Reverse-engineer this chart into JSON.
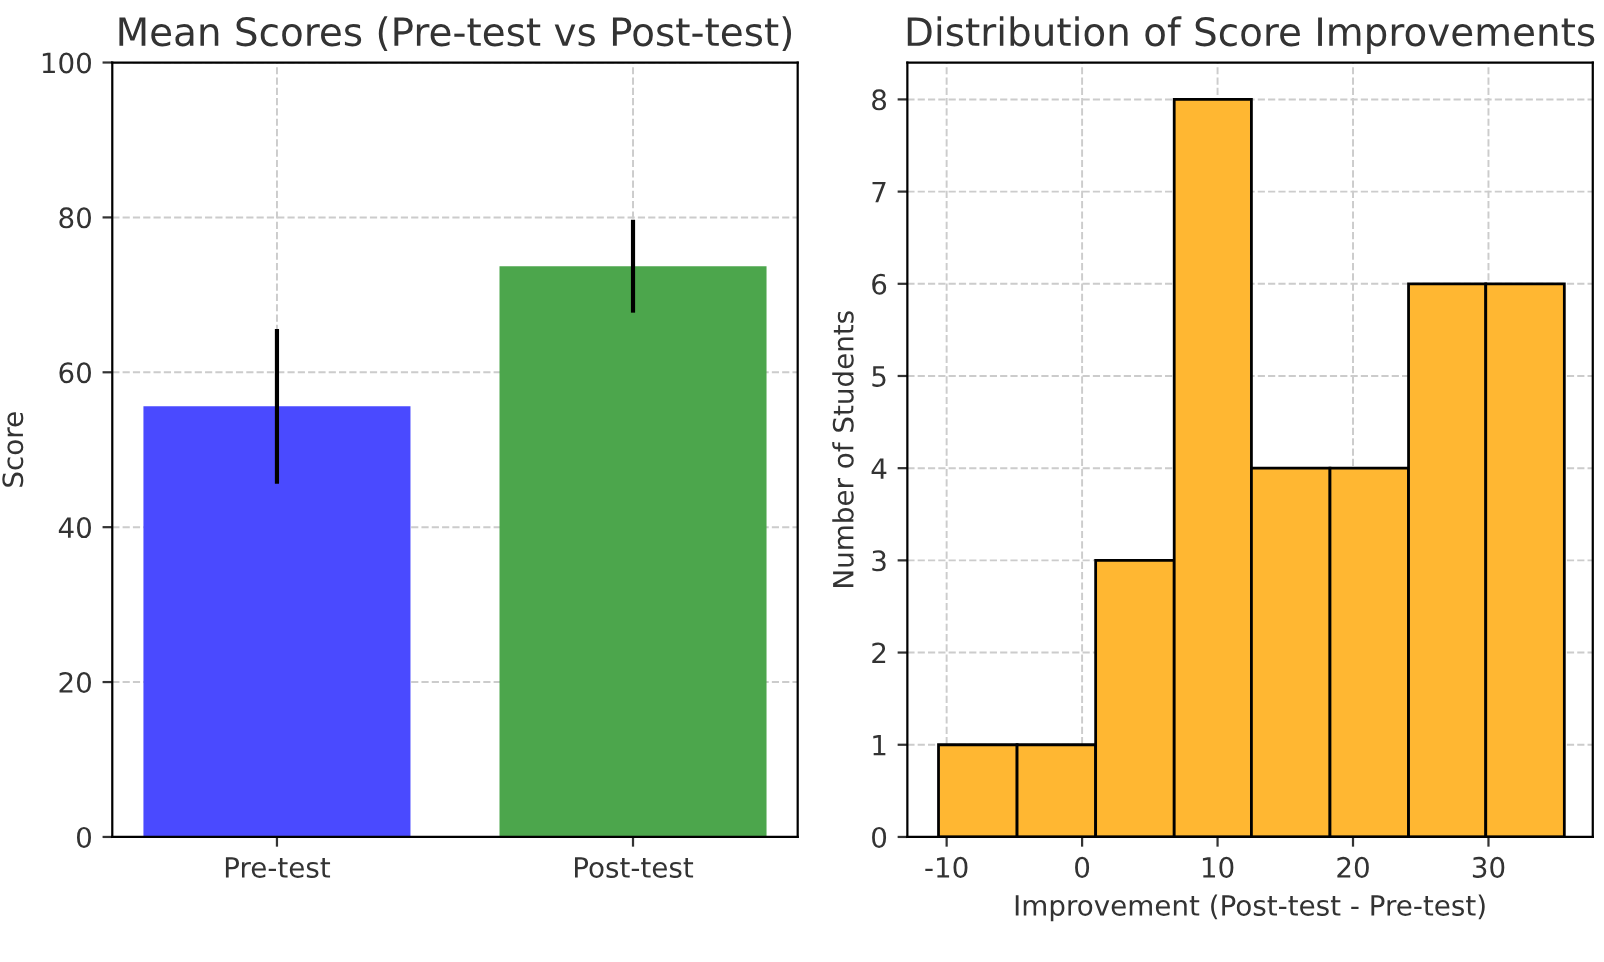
{
  "chart_data": [
    {
      "type": "bar",
      "title": "Mean Scores (Pre-test vs Post-test)",
      "ylabel": "Score",
      "categories": [
        "Pre-test",
        "Post-test"
      ],
      "values": [
        55.6,
        73.7
      ],
      "errors": [
        10,
        6
      ],
      "colors": [
        "#4a4aff",
        "#4ca64c"
      ],
      "ylim": [
        0,
        100
      ],
      "yticks": [
        0,
        20,
        40,
        60,
        80,
        100
      ],
      "grid": true
    },
    {
      "type": "histogram",
      "title": "Distribution of Score Improvements",
      "xlabel": "Improvement (Post-test - Pre-test)",
      "ylabel": "Number of Students",
      "bins": [
        -10.6,
        -4.8,
        1.0,
        6.8,
        12.5,
        18.3,
        24.1,
        29.8,
        35.6
      ],
      "values": [
        1,
        1,
        3,
        8,
        4,
        4,
        6,
        6
      ],
      "color": "#ffb732",
      "xlim": [
        -12.9,
        37.7
      ],
      "xticks": [
        -10,
        0,
        10,
        20,
        30
      ],
      "ylim": [
        0,
        8.4
      ],
      "yticks": [
        0,
        1,
        2,
        3,
        4,
        5,
        6,
        7,
        8
      ],
      "grid": true
    }
  ]
}
